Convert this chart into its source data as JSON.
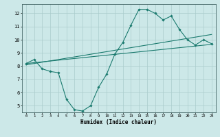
{
  "title": "",
  "xlabel": "Humidex (Indice chaleur)",
  "ylabel": "",
  "bg_color": "#cce8e8",
  "grid_color": "#aacccc",
  "line_color": "#1a7a6e",
  "xlim": [
    -0.5,
    23.5
  ],
  "ylim": [
    4.5,
    12.7
  ],
  "yticks": [
    5,
    6,
    7,
    8,
    9,
    10,
    11,
    12
  ],
  "xticks": [
    0,
    1,
    2,
    3,
    4,
    5,
    6,
    7,
    8,
    9,
    10,
    11,
    12,
    13,
    14,
    15,
    16,
    17,
    18,
    19,
    20,
    21,
    22,
    23
  ],
  "line1_x": [
    0,
    1,
    2,
    3,
    4,
    5,
    6,
    7,
    8,
    9,
    10,
    11,
    12,
    13,
    14,
    15,
    16,
    17,
    18,
    19,
    20,
    21,
    22,
    23
  ],
  "line1_y": [
    8.2,
    8.5,
    7.8,
    7.6,
    7.5,
    5.5,
    4.7,
    4.6,
    5.0,
    6.4,
    7.4,
    8.9,
    9.8,
    11.1,
    12.3,
    12.3,
    12.0,
    11.5,
    11.8,
    10.8,
    10.0,
    9.6,
    10.0,
    9.7
  ],
  "line2_x": [
    0,
    23
  ],
  "line2_y": [
    8.1,
    10.4
  ],
  "line3_x": [
    0,
    23
  ],
  "line3_y": [
    8.2,
    9.65
  ]
}
